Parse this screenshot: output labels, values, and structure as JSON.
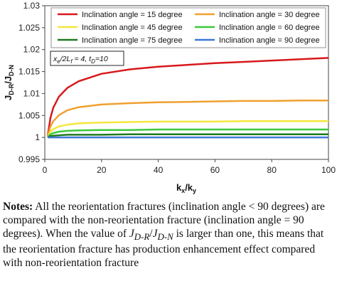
{
  "chart_data": {
    "type": "line",
    "xlabel": "kx/ky",
    "ylabel": "JD-R/JD-N",
    "xlim": [
      0,
      100
    ],
    "ylim": [
      0.995,
      1.03
    ],
    "xticks": [
      "0",
      "20",
      "40",
      "60",
      "80",
      "100"
    ],
    "yticks": [
      "0.995",
      "1",
      "1.005",
      "1.01",
      "1.015",
      "1.02",
      "1.025",
      "1.03"
    ],
    "grid": false,
    "legend_placement": "top",
    "annotation": "xe/2Lf = 4, tD=10",
    "series": [
      {
        "name": "Inclination angle = 15 degree",
        "color": "#d7191c",
        "x": [
          1,
          2,
          3,
          5,
          8,
          12,
          20,
          30,
          40,
          50,
          60,
          70,
          80,
          90,
          100
        ],
        "y": [
          1.0003,
          1.0045,
          1.0068,
          1.0093,
          1.0113,
          1.0128,
          1.0145,
          1.0155,
          1.0161,
          1.0165,
          1.0169,
          1.0172,
          1.0175,
          1.0178,
          1.0181
        ]
      },
      {
        "name": "Inclination angle = 30 degree",
        "color": "#f0a030",
        "x": [
          1,
          2,
          3,
          5,
          8,
          12,
          20,
          30,
          40,
          50,
          60,
          70,
          80,
          90,
          100
        ],
        "y": [
          1.0002,
          1.0025,
          1.0037,
          1.0051,
          1.0062,
          1.0069,
          1.0075,
          1.0078,
          1.008,
          1.0081,
          1.0082,
          1.0083,
          1.0083,
          1.0084,
          1.0084
        ]
      },
      {
        "name": "Inclination angle = 45 degree",
        "color": "#f5e63c",
        "x": [
          1,
          2,
          3,
          5,
          8,
          12,
          20,
          30,
          40,
          50,
          60,
          70,
          80,
          90,
          100
        ],
        "y": [
          1.0001,
          1.0013,
          1.0019,
          1.0025,
          1.0029,
          1.0032,
          1.0034,
          1.0035,
          1.0036,
          1.0036,
          1.0036,
          1.0037,
          1.0037,
          1.0037,
          1.0037
        ]
      },
      {
        "name": "Inclination angle = 60 degree",
        "color": "#3cc83c",
        "x": [
          1,
          2,
          3,
          5,
          8,
          12,
          20,
          30,
          40,
          50,
          60,
          70,
          80,
          90,
          100
        ],
        "y": [
          1.0001,
          1.0007,
          1.001,
          1.0013,
          1.0015,
          1.0016,
          1.0017,
          1.0017,
          1.0018,
          1.0018,
          1.0018,
          1.0018,
          1.0018,
          1.0018,
          1.0018
        ]
      },
      {
        "name": "Inclination angle = 75 degree",
        "color": "#1e7a1e",
        "x": [
          1,
          2,
          3,
          5,
          8,
          12,
          20,
          30,
          40,
          50,
          60,
          70,
          80,
          90,
          100
        ],
        "y": [
          1.0,
          1.0003,
          1.0004,
          1.0005,
          1.0006,
          1.0006,
          1.0006,
          1.0007,
          1.0007,
          1.0007,
          1.0007,
          1.0007,
          1.0007,
          1.0007,
          1.0007
        ]
      },
      {
        "name": "Inclination angle = 90 degree",
        "color": "#3c78d8",
        "x": [
          1,
          100
        ],
        "y": [
          1.0,
          1.0
        ]
      }
    ]
  },
  "notes": {
    "label": "Notes:",
    "part1": " All the reorientation fractures (inclination angle < 90 degrees) are compared with the non-reorientation fracture (inclination angle = 90 degrees). When the value of ",
    "jdr": "J",
    "jdr_sub": "D-R",
    "slash": "/",
    "jdn": "J",
    "jdn_sub": "D-N",
    "part2": " is larger than one, this means that the reorientation fracture has production enhancement effect compared with non-reorientation fracture"
  }
}
